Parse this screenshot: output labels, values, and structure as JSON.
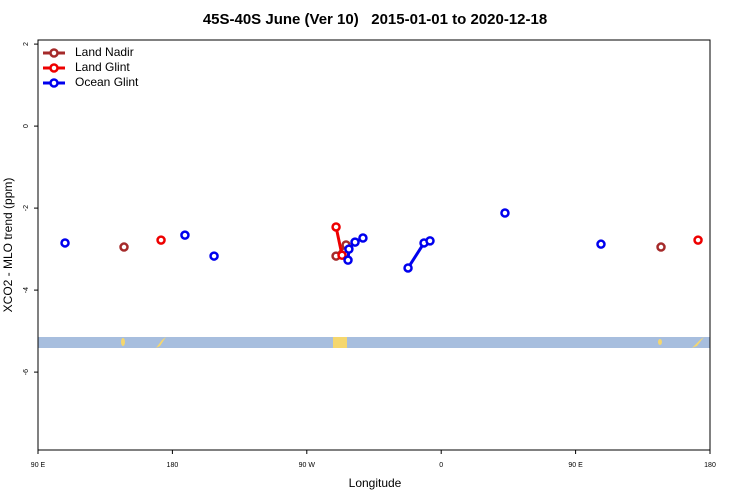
{
  "chart_data": {
    "type": "scatter",
    "title": "45S-40S June (Ver 10)   2015-01-01 to 2020-12-18",
    "x_label": "Longitude",
    "y_label": "XCO2 - MLO trend (ppm)",
    "xlim": [
      90,
      540
    ],
    "ylim": [
      -7.9,
      2.1
    ],
    "xticks": [
      {
        "value": 90,
        "label": "90 E"
      },
      180,
      {
        "value": 270,
        "label": "90 W"
      },
      {
        "value": 360,
        "label": "0"
      },
      {
        "value": 450,
        "label": "90 E"
      },
      {
        "value": 540,
        "label": "180"
      }
    ],
    "yticks": [
      2,
      0,
      -2,
      -4,
      -6
    ],
    "legend": "top-left",
    "series": [
      {
        "name": "Land Nadir",
        "color": "#a52a2a",
        "x": [
          147.6,
          289.6,
          296.3,
          507.2
        ],
        "values": [
          -2.95,
          -3.17,
          -2.9,
          -2.95
        ]
      },
      {
        "name": "Land Glint",
        "color": "#ee0000",
        "x": [
          172.4,
          289.6,
          293.6,
          532
        ],
        "values": [
          -2.78,
          -2.46,
          -3.15,
          -2.78
        ]
      },
      {
        "name": "Ocean Glint",
        "color": "#0000ee",
        "x": [
          108.1,
          188.4,
          207.9,
          297.6,
          298.2,
          302.3,
          307.6,
          337.8,
          348.5,
          352.5,
          402.7,
          467
        ],
        "values": [
          -2.85,
          -2.66,
          -3.17,
          -3.27,
          -3.0,
          -2.83,
          -2.73,
          -3.46,
          -2.85,
          -2.8,
          -2.12,
          -2.88
        ]
      }
    ]
  }
}
